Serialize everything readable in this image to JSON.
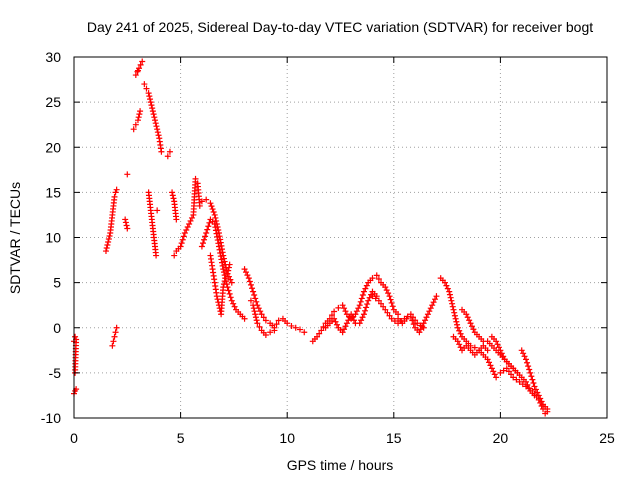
{
  "chart_data": {
    "type": "scatter",
    "title": "Day 241 of 2025, Sidereal Day-to-day VTEC variation (SDTVAR) for receiver bogt",
    "xlabel": "GPS time / hours",
    "ylabel": "SDTVAR / TECUs",
    "xlim": [
      0,
      25
    ],
    "ylim": [
      -10,
      30
    ],
    "xticks": [
      "0",
      "5",
      "10",
      "15",
      "20",
      "25"
    ],
    "yticks": [
      "-10",
      "-5",
      "0",
      "5",
      "10",
      "15",
      "20",
      "25",
      "30"
    ],
    "grid": true,
    "marker": "plus",
    "color": "#ff0000",
    "series": [
      {
        "name": "SDTVAR",
        "x": [
          0.0,
          0.05,
          0.1,
          0.0,
          0.05,
          0.1,
          0.05
        ],
        "y": [
          -7.3,
          -7.0,
          -6.8,
          -1.5,
          -1.0,
          -1.3,
          -5.0
        ]
      },
      {
        "name": "SDTVAR",
        "x": [
          1.5,
          1.6,
          1.7,
          1.75,
          1.8,
          1.85,
          1.9,
          1.95,
          2.0
        ],
        "y": [
          8.5,
          9.5,
          10.5,
          11.5,
          12.5,
          13.5,
          14.5,
          15.0,
          15.3
        ]
      },
      {
        "name": "SDTVAR",
        "x": [
          1.8,
          1.85,
          1.9,
          1.95,
          2.0
        ],
        "y": [
          -2.0,
          -1.5,
          -1.0,
          -0.5,
          0.0
        ]
      },
      {
        "name": "SDTVAR",
        "x": [
          2.4,
          2.5,
          2.5,
          2.8,
          2.9,
          3.0,
          3.1,
          3.2,
          2.9,
          3.0
        ],
        "y": [
          12.0,
          11.0,
          17.0,
          22.0,
          22.5,
          23.0,
          24.0,
          29.5,
          28.0,
          28.5
        ]
      },
      {
        "name": "SDTVAR",
        "x": [
          3.3,
          3.4,
          3.5,
          3.6,
          3.7,
          3.8,
          3.9,
          4.0,
          4.1
        ],
        "y": [
          27.0,
          26.5,
          26.0,
          25.0,
          24.0,
          23.0,
          22.0,
          21.0,
          19.5
        ]
      },
      {
        "name": "SDTVAR",
        "x": [
          3.5,
          3.55,
          3.6,
          3.65,
          3.7,
          3.75,
          3.8,
          3.85,
          3.9
        ],
        "y": [
          15.0,
          14.0,
          13.0,
          12.0,
          11.0,
          10.0,
          9.0,
          8.0,
          13.0
        ]
      },
      {
        "name": "SDTVAR",
        "x": [
          4.4,
          4.5,
          4.6,
          4.7,
          4.8
        ],
        "y": [
          19.0,
          19.5,
          15.0,
          14.0,
          12.0
        ]
      },
      {
        "name": "SDTVAR",
        "x": [
          4.7,
          4.8,
          5.0,
          5.2,
          5.4,
          5.6,
          5.7,
          5.8,
          5.9,
          6.0,
          6.2,
          6.4,
          6.6,
          6.8,
          7.0,
          7.2,
          7.4
        ],
        "y": [
          8.0,
          8.5,
          9.0,
          10.5,
          11.5,
          12.5,
          16.5,
          16.0,
          13.5,
          14.0,
          14.2,
          13.8,
          12.5,
          10.5,
          8.0,
          6.0,
          5.0
        ]
      },
      {
        "name": "SDTVAR",
        "x": [
          6.0,
          6.2,
          6.4,
          6.6,
          6.8,
          7.0,
          7.2,
          7.4,
          7.6,
          7.8,
          8.0
        ],
        "y": [
          9.0,
          10.5,
          12.0,
          11.5,
          9.0,
          6.5,
          4.5,
          3.0,
          2.0,
          1.5,
          1.0
        ]
      },
      {
        "name": "SDTVAR",
        "x": [
          6.4,
          6.5,
          6.6,
          6.7,
          6.8,
          6.9,
          7.0,
          7.1,
          7.2,
          7.3
        ],
        "y": [
          8.0,
          6.5,
          5.0,
          3.5,
          2.5,
          1.5,
          4.5,
          5.5,
          6.0,
          7.0
        ]
      },
      {
        "name": "SDTVAR",
        "x": [
          8.0,
          8.2,
          8.4,
          8.6,
          8.8,
          9.0,
          9.2,
          9.4,
          9.6,
          9.8,
          10.0,
          10.2,
          10.4,
          10.6,
          10.8
        ],
        "y": [
          6.5,
          5.5,
          4.0,
          2.5,
          1.5,
          0.8,
          0.5,
          0.0,
          0.8,
          1.0,
          0.5,
          0.2,
          0.0,
          -0.2,
          -0.5
        ]
      },
      {
        "name": "SDTVAR",
        "x": [
          8.3,
          8.4,
          8.5,
          8.6,
          8.8,
          9.0,
          9.2,
          9.4
        ],
        "y": [
          3.0,
          2.5,
          1.5,
          0.5,
          -0.3,
          -0.8,
          -0.5,
          -0.3
        ]
      },
      {
        "name": "SDTVAR",
        "x": [
          11.2,
          11.4,
          11.6,
          11.8,
          12.0,
          12.2,
          12.4,
          12.6,
          12.8,
          13.0,
          13.2,
          13.4,
          13.6,
          13.8,
          14.0,
          14.2,
          14.4,
          14.6,
          14.8,
          15.0,
          15.2
        ],
        "y": [
          -1.5,
          -1.0,
          -0.3,
          0.5,
          1.0,
          1.8,
          2.2,
          2.5,
          1.5,
          1.0,
          1.5,
          2.5,
          4.0,
          5.0,
          5.5,
          5.8,
          5.0,
          4.5,
          3.5,
          2.0,
          1.5
        ]
      },
      {
        "name": "SDTVAR",
        "x": [
          11.8,
          12.0,
          12.2,
          12.4,
          12.6,
          12.8,
          13.0,
          13.2,
          13.4,
          13.6,
          13.8,
          14.0,
          14.2
        ],
        "y": [
          0.0,
          0.5,
          1.0,
          0.0,
          -0.5,
          0.5,
          1.5,
          0.5,
          0.5,
          1.5,
          3.0,
          4.0,
          3.5
        ]
      },
      {
        "name": "SDTVAR",
        "x": [
          15.2,
          15.4,
          15.6,
          15.8,
          16.0,
          16.2,
          16.4,
          16.6,
          16.8,
          17.0
        ],
        "y": [
          1.0,
          0.5,
          1.0,
          1.2,
          0.0,
          -0.5,
          0.5,
          1.5,
          2.5,
          3.5
        ]
      },
      {
        "name": "SDTVAR",
        "x": [
          14.0,
          14.3,
          14.6,
          14.9,
          15.2,
          15.5,
          15.8,
          16.1,
          16.4
        ],
        "y": [
          3.5,
          3.0,
          2.0,
          1.0,
          0.5,
          1.0,
          1.5,
          0.5,
          0.0
        ]
      },
      {
        "name": "SDTVAR",
        "x": [
          17.2,
          17.4,
          17.6,
          17.7,
          17.8,
          17.9,
          18.0,
          18.2,
          18.4,
          18.6,
          18.8,
          19.0,
          19.2,
          19.4
        ],
        "y": [
          5.5,
          5.0,
          4.0,
          3.0,
          2.0,
          1.0,
          0.0,
          -1.0,
          -1.5,
          -2.0,
          -2.2,
          -2.5,
          -2.0,
          -2.5
        ]
      },
      {
        "name": "SDTVAR",
        "x": [
          17.8,
          18.0,
          18.2,
          18.4,
          18.6,
          18.8,
          19.0,
          19.2,
          19.4,
          19.6,
          19.8
        ],
        "y": [
          -1.0,
          -1.5,
          -2.5,
          -2.0,
          -2.5,
          -3.0,
          -2.5,
          -3.0,
          -3.5,
          -4.5,
          -5.5
        ]
      },
      {
        "name": "SDTVAR",
        "x": [
          18.2,
          18.4,
          18.6,
          18.8,
          19.0,
          19.2,
          19.4,
          19.6,
          19.8,
          20.0,
          20.2,
          20.4,
          20.6,
          20.8
        ],
        "y": [
          2.0,
          1.5,
          0.5,
          -0.5,
          -1.0,
          -1.5,
          -1.5,
          -2.0,
          -2.5,
          -3.0,
          -3.5,
          -4.0,
          -4.5,
          -5.0
        ]
      },
      {
        "name": "SDTVAR",
        "x": [
          19.6,
          19.8,
          20.0,
          20.2,
          20.4,
          20.6,
          20.8,
          21.0,
          21.2,
          21.4,
          21.6
        ],
        "y": [
          -1.0,
          -1.5,
          -2.5,
          -3.5,
          -4.0,
          -4.5,
          -5.0,
          -5.5,
          -6.0,
          -7.0,
          -7.5
        ]
      },
      {
        "name": "SDTVAR",
        "x": [
          20.0,
          20.3,
          20.6,
          20.9,
          21.2,
          21.5,
          21.8,
          22.0,
          22.1,
          22.2
        ],
        "y": [
          -5.0,
          -4.5,
          -5.5,
          -6.0,
          -6.5,
          -7.0,
          -8.0,
          -9.0,
          -9.5,
          -9.3
        ]
      },
      {
        "name": "SDTVAR",
        "x": [
          21.0,
          21.2,
          21.4,
          21.6,
          21.8,
          22.0,
          22.2
        ],
        "y": [
          -2.5,
          -3.5,
          -5.0,
          -6.5,
          -7.5,
          -8.5,
          -9.0
        ]
      }
    ]
  }
}
